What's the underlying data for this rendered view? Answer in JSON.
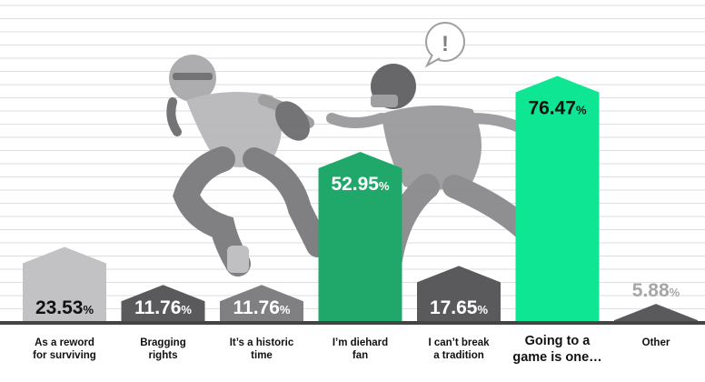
{
  "chart_data": {
    "type": "bar",
    "title": "",
    "xlabel": "",
    "ylabel": "",
    "ylim": [
      0,
      100
    ],
    "grid": true,
    "percent_suffix": "%",
    "categories": [
      "As a reword\nfor surviving",
      "Bragging\nrights",
      "It’s a historic\ntime",
      "I’m diehard\nfan",
      "I can’t break\na tradition",
      "Going to a\ngame is one…",
      "Other"
    ],
    "values": [
      23.53,
      11.76,
      11.76,
      52.95,
      17.65,
      76.47,
      5.88
    ],
    "value_labels": [
      "23.53",
      "11.76",
      "11.76",
      "52.95",
      "17.65",
      "76.47",
      "5.88"
    ],
    "bar_colors": [
      "#c2c2c4",
      "#5a5a5d",
      "#808083",
      "#20a86b",
      "#5a5a5d",
      "#0fe693",
      "#5a5a5d"
    ],
    "emphasized_category_index": 5
  },
  "illustration": {
    "icon": "football-players-icon",
    "speech_bubble_icon": "exclamation-icon",
    "speech_bubble_text": "!"
  }
}
